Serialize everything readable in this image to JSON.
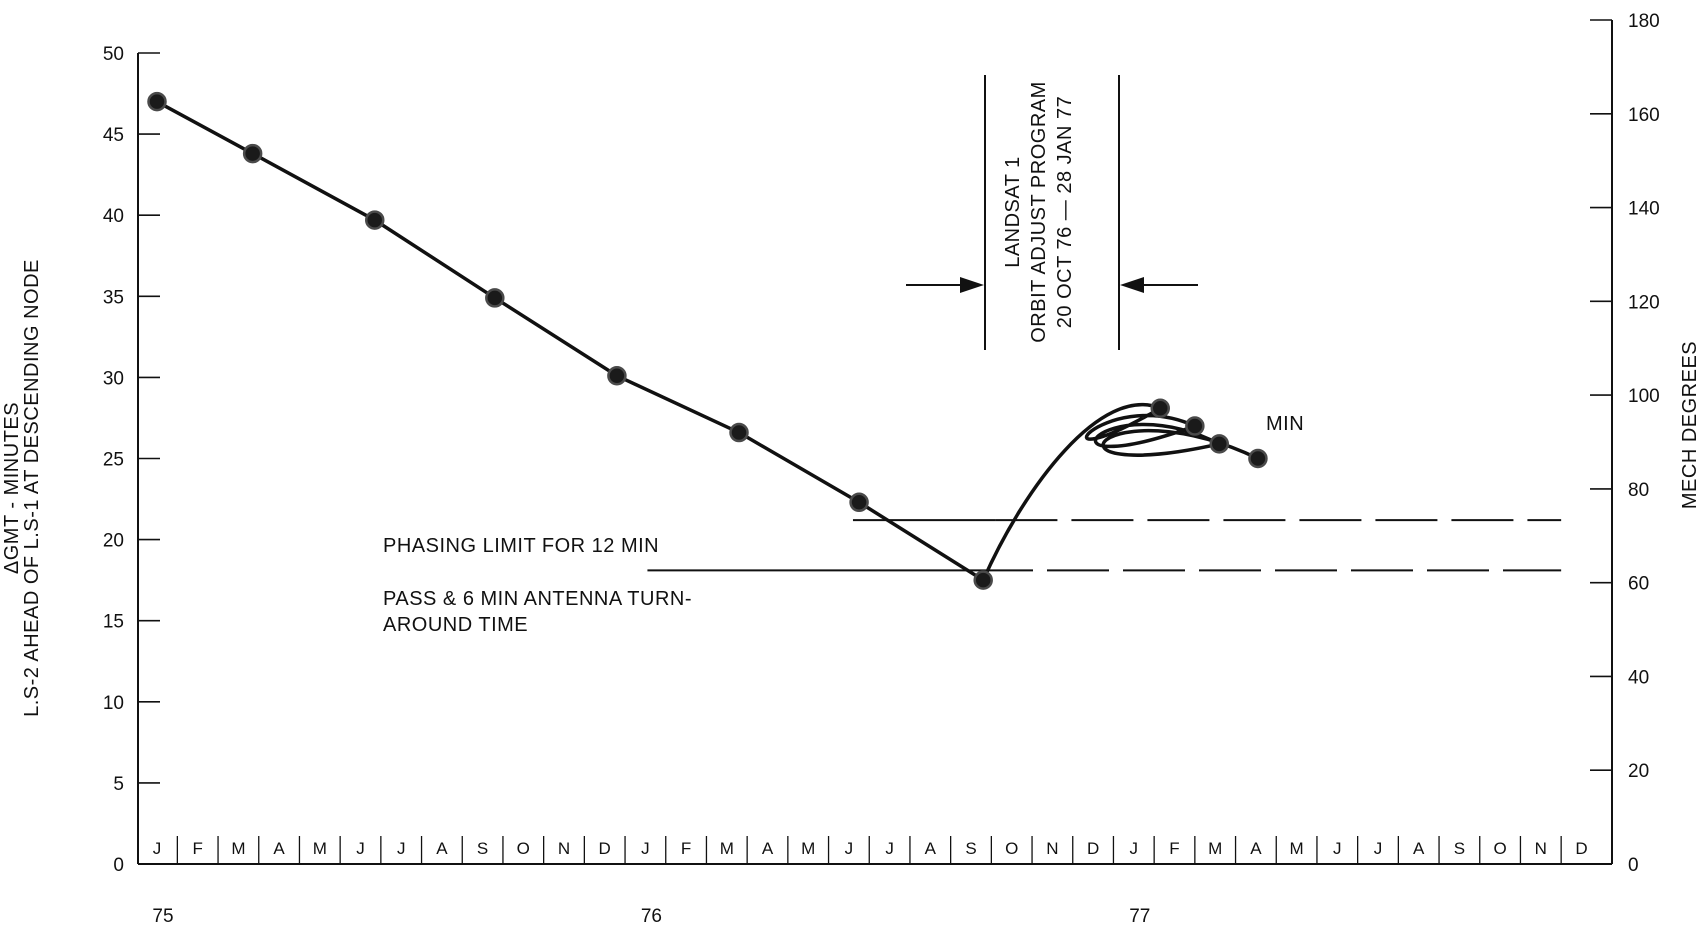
{
  "chart_data": {
    "type": "line",
    "title": "",
    "ylabel_lines": [
      "L.S-2 AHEAD OF L.S-1 AT DESCENDING NODE",
      "ΔGMT - MINUTES"
    ],
    "y2label": "MECH DEGREES",
    "ylim": [
      0,
      50
    ],
    "yticks": [
      0,
      5,
      10,
      15,
      20,
      25,
      30,
      35,
      40,
      45,
      50
    ],
    "y2lim": [
      0,
      180
    ],
    "y2ticks": [
      0,
      20,
      40,
      60,
      80,
      100,
      120,
      140,
      160,
      180
    ],
    "months": [
      "J",
      "F",
      "M",
      "A",
      "M",
      "J",
      "J",
      "A",
      "S",
      "O",
      "N",
      "D",
      "J",
      "F",
      "M",
      "A",
      "M",
      "J",
      "J",
      "A",
      "S",
      "O",
      "N",
      "D",
      "J",
      "F",
      "M",
      "A",
      "M",
      "J",
      "J",
      "A",
      "S",
      "O",
      "N",
      "D"
    ],
    "years": [
      {
        "label": "75",
        "month_index": 0
      },
      {
        "label": "76",
        "month_index": 12
      },
      {
        "label": "77",
        "month_index": 24
      }
    ],
    "series": [
      {
        "points": [
          {
            "month": 0.0,
            "value": 47.0
          },
          {
            "month": 2.35,
            "value": 43.8
          },
          {
            "month": 5.35,
            "value": 39.7
          },
          {
            "month": 8.3,
            "value": 34.9
          },
          {
            "month": 11.3,
            "value": 30.1
          },
          {
            "month": 14.3,
            "value": 26.6
          },
          {
            "month": 17.25,
            "value": 22.3
          },
          {
            "month": 20.3,
            "value": 17.5
          },
          {
            "month": 24.65,
            "value": 28.1
          },
          {
            "month": 25.5,
            "value": 27.0
          },
          {
            "month": 26.1,
            "value": 25.9
          },
          {
            "month": 27.05,
            "value": 25.0
          }
        ]
      }
    ],
    "limit_lines": [
      {
        "value": 21.2,
        "start_month": 17.1,
        "end_month": 34.5
      },
      {
        "value": 18.1,
        "start_month": 12.05,
        "end_month": 34.5
      }
    ],
    "annotations": {
      "phasing_limit": "PHASING LIMIT FOR 12 MIN",
      "pass_line1": "PASS & 6 MIN ANTENNA TURN-",
      "pass_line2": "AROUND TIME",
      "min_label": "MIN",
      "program_lines": [
        "LANDSAT 1",
        "ORBIT ADJUST PROGRAM",
        "20 OCT 76 — 28 JAN 77"
      ]
    }
  }
}
